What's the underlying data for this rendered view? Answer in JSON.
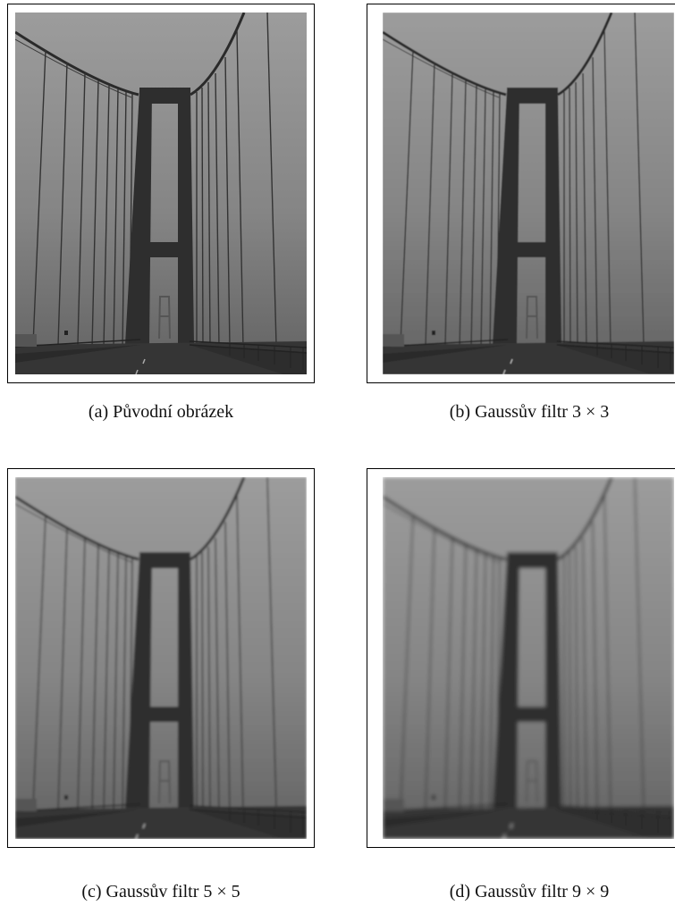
{
  "panels": [
    {
      "caption": "(a) Původní obrázek"
    },
    {
      "caption": "(b) Gaussův filtr 3 × 3"
    },
    {
      "caption": "(c) Gaussův filtr 5 × 5"
    },
    {
      "caption": "(d) Gaussův filtr 9 × 9"
    }
  ]
}
